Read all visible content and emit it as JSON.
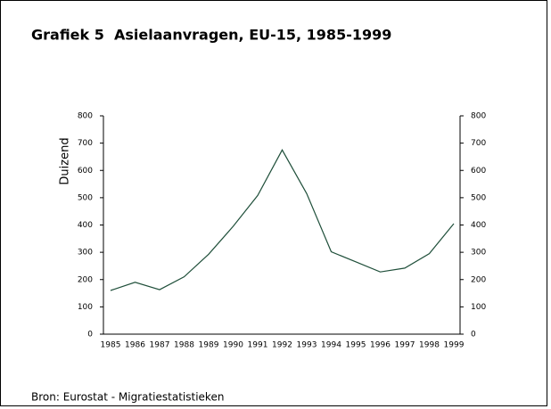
{
  "chart_data": {
    "type": "line",
    "title": "Grafiek 5  Asielaanvragen, EU-15, 1985-1999",
    "y_label": "Duizend",
    "source": "Bron: Eurostat - Migratiestatistieken",
    "categories": [
      "1985",
      "1986",
      "1987",
      "1988",
      "1989",
      "1990",
      "1991",
      "1992",
      "1993",
      "1994",
      "1995",
      "1996",
      "1997",
      "1998",
      "1999"
    ],
    "series": [
      {
        "name": "Asielaanvragen",
        "color": "#1f4f3a",
        "values": [
          160,
          190,
          163,
          210,
          293,
          395,
          508,
          675,
          515,
          302,
          265,
          228,
          242,
          295,
          405
        ]
      }
    ],
    "ylim": [
      0,
      800
    ],
    "yticks": [
      0,
      100,
      200,
      300,
      400,
      500,
      600,
      700,
      800
    ],
    "y2lim": [
      0,
      800
    ],
    "y2ticks": [
      0,
      100,
      200,
      300,
      400,
      500,
      600,
      700,
      800
    ]
  }
}
